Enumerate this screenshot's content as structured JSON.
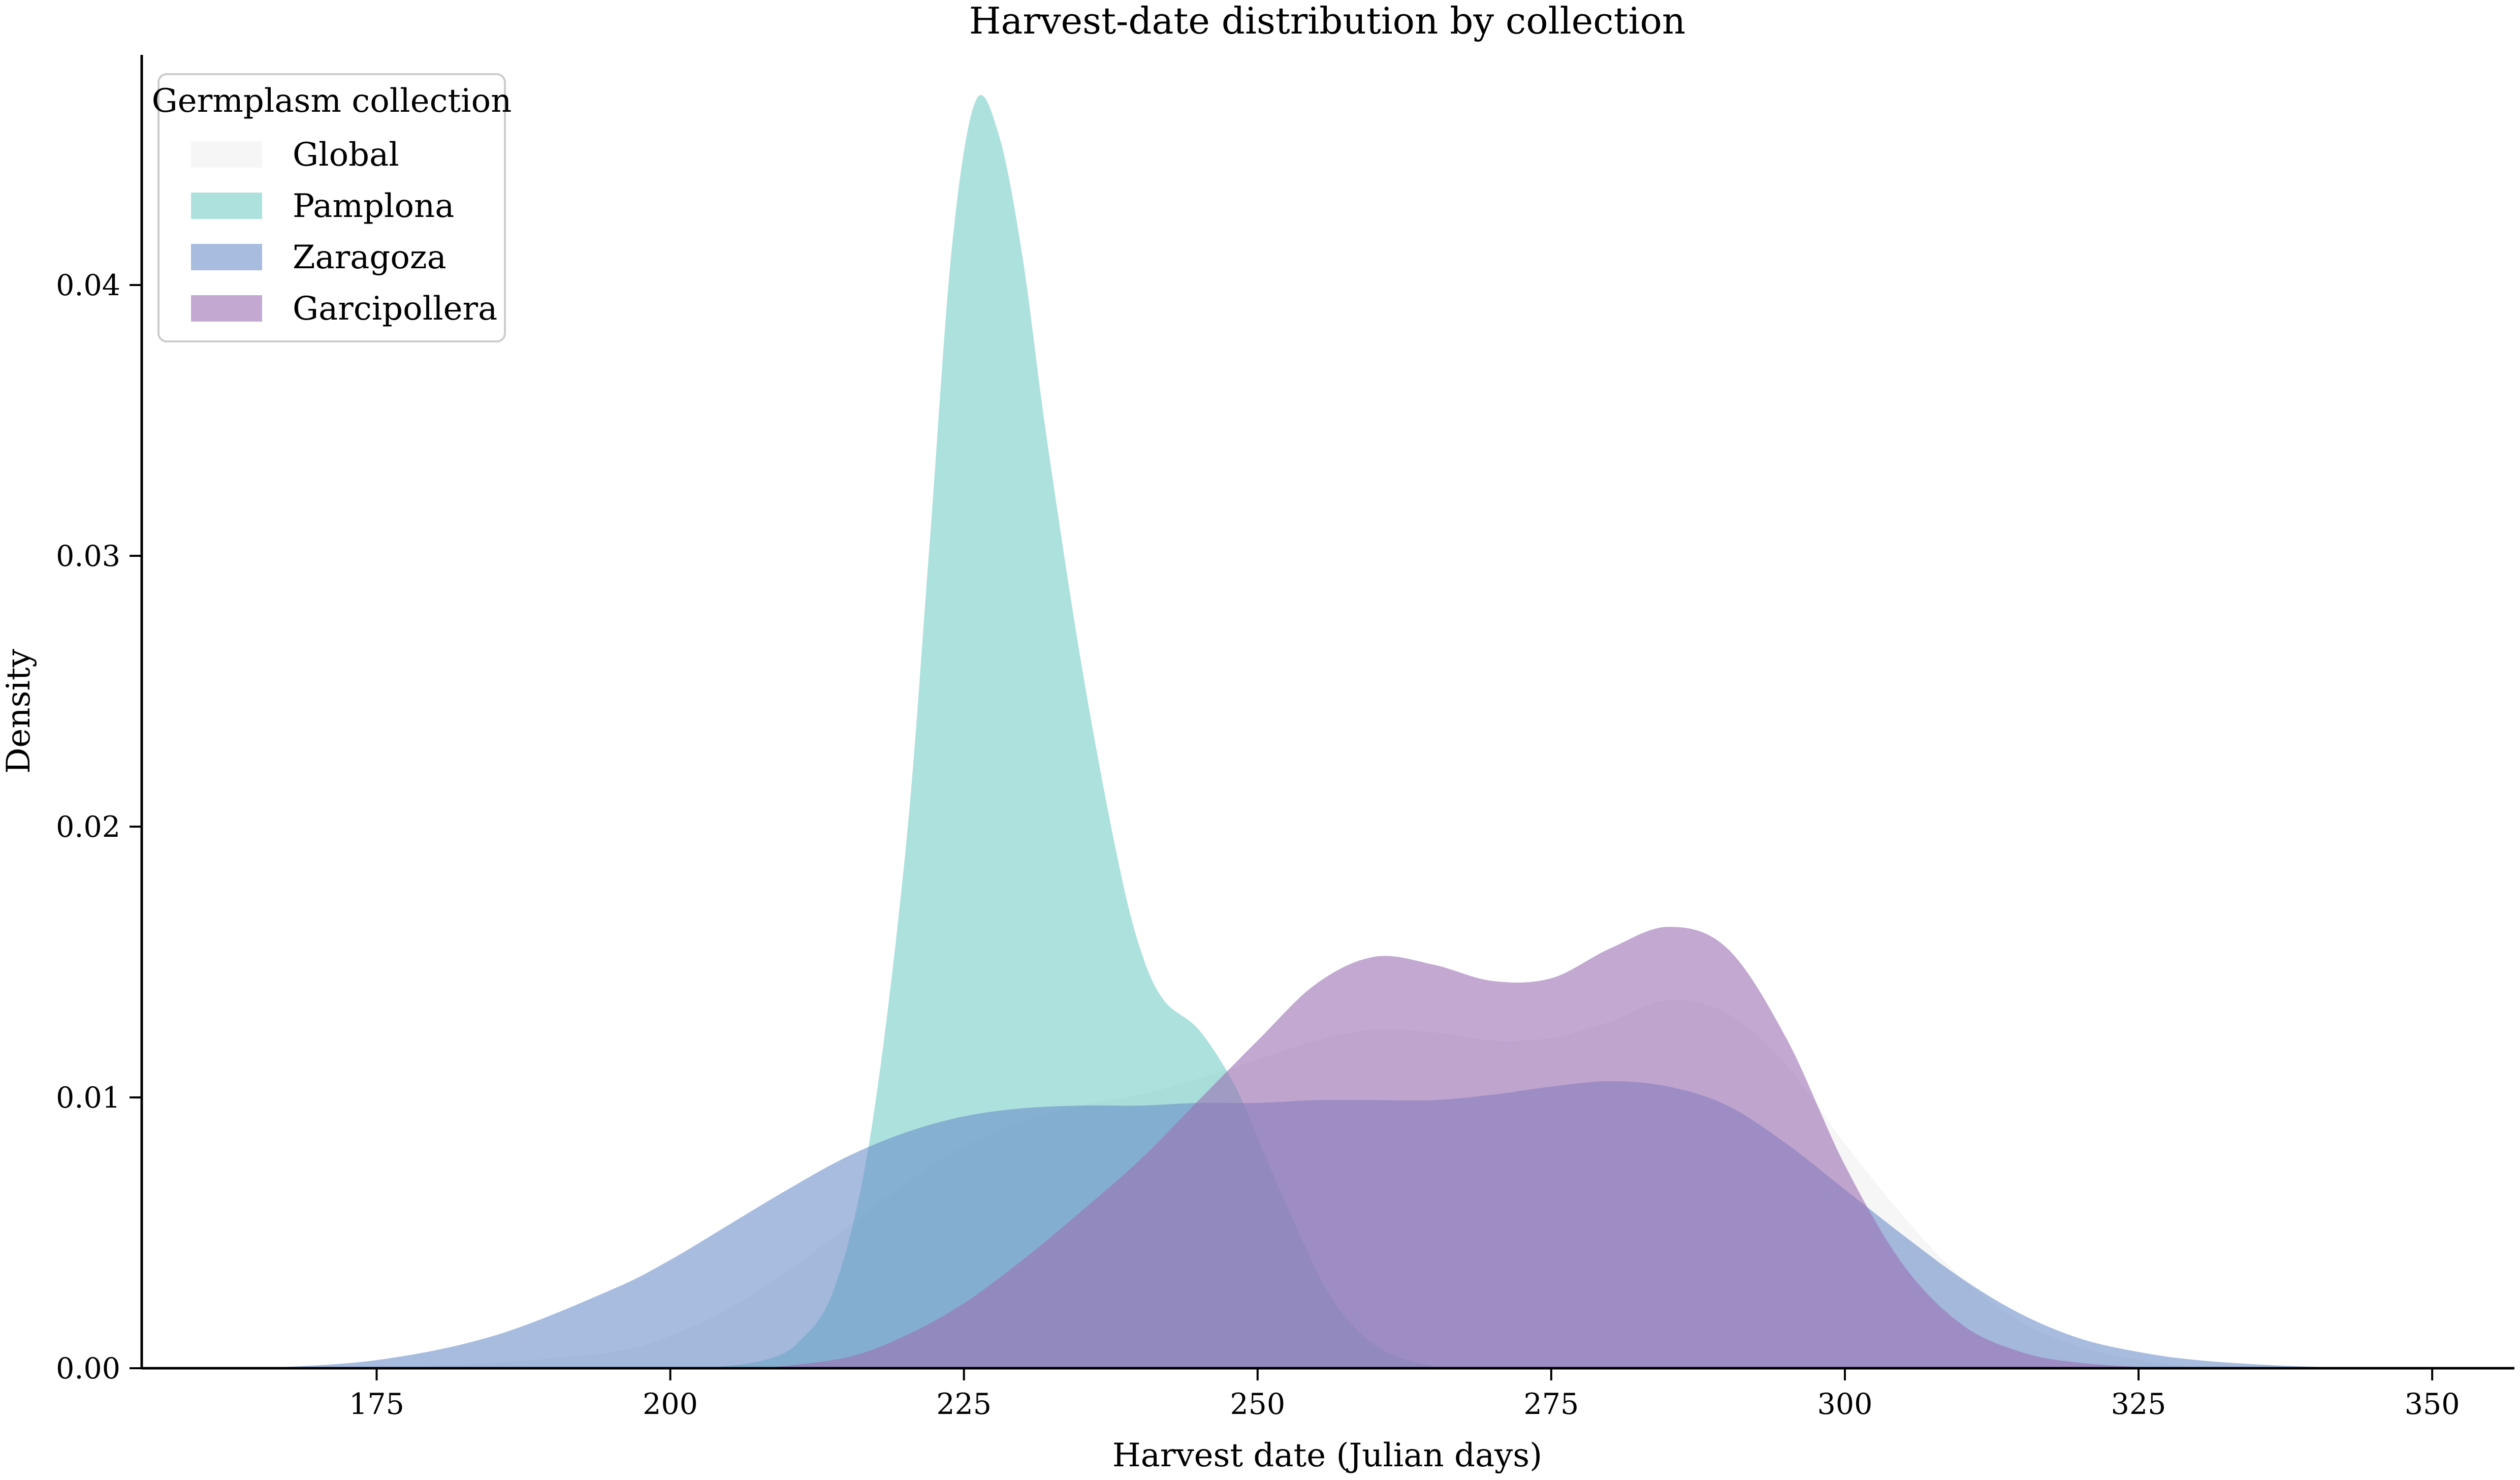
{
  "chart_data": {
    "type": "area",
    "title": "Harvest-date distribution by collection",
    "xlabel": "Harvest date (Julian days)",
    "ylabel": "Density",
    "xlim": [
      155,
      357
    ],
    "ylim": [
      0,
      0.0485
    ],
    "xticks": [
      175,
      200,
      225,
      250,
      275,
      300,
      325,
      350
    ],
    "xtick_labels": [
      "175",
      "200",
      "225",
      "250",
      "275",
      "300",
      "325",
      "350"
    ],
    "yticks": [
      0,
      0.01,
      0.02,
      0.03,
      0.04
    ],
    "ytick_labels": [
      "0.00",
      "0.01",
      "0.02",
      "0.03",
      "0.04"
    ],
    "grid": false,
    "legend": {
      "title": "Germplasm collection",
      "position": "top-left"
    },
    "series": [
      {
        "name": "Global",
        "color": "#eeeeee",
        "points": [
          [
            175,
            0.0
          ],
          [
            185,
            0.0002
          ],
          [
            195,
            0.0006
          ],
          [
            200,
            0.0012
          ],
          [
            205,
            0.0022
          ],
          [
            210,
            0.0036
          ],
          [
            215,
            0.0052
          ],
          [
            220,
            0.0068
          ],
          [
            225,
            0.0082
          ],
          [
            230,
            0.0091
          ],
          [
            235,
            0.0097
          ],
          [
            240,
            0.0101
          ],
          [
            245,
            0.0107
          ],
          [
            250,
            0.0114
          ],
          [
            255,
            0.0121
          ],
          [
            260,
            0.0125
          ],
          [
            265,
            0.0124
          ],
          [
            270,
            0.0121
          ],
          [
            275,
            0.0122
          ],
          [
            280,
            0.0128
          ],
          [
            285,
            0.0136
          ],
          [
            290,
            0.0131
          ],
          [
            295,
            0.0112
          ],
          [
            300,
            0.0083
          ],
          [
            305,
            0.0056
          ],
          [
            310,
            0.0033
          ],
          [
            315,
            0.0017
          ],
          [
            320,
            0.0008
          ],
          [
            325,
            0.0003
          ],
          [
            330,
            0.0
          ]
        ]
      },
      {
        "name": "Pamplona",
        "color": "#76cdc8",
        "points": [
          [
            203,
            0.0
          ],
          [
            208,
            0.0003
          ],
          [
            211,
            0.001
          ],
          [
            214,
            0.003
          ],
          [
            217,
            0.0085
          ],
          [
            220,
            0.019
          ],
          [
            222,
            0.03
          ],
          [
            224,
            0.0415
          ],
          [
            226,
            0.0468
          ],
          [
            228,
            0.0455
          ],
          [
            230,
            0.041
          ],
          [
            232,
            0.0345
          ],
          [
            235,
            0.026
          ],
          [
            238,
            0.019
          ],
          [
            240,
            0.0155
          ],
          [
            242,
            0.0136
          ],
          [
            245,
            0.0125
          ],
          [
            248,
            0.0105
          ],
          [
            250,
            0.0085
          ],
          [
            253,
            0.0055
          ],
          [
            256,
            0.0028
          ],
          [
            259,
            0.0012
          ],
          [
            262,
            0.0004
          ],
          [
            266,
            0.0
          ]
        ]
      },
      {
        "name": "Zaragoza",
        "color": "#6d90c9",
        "points": [
          [
            165,
            0.0
          ],
          [
            175,
            0.0003
          ],
          [
            185,
            0.0012
          ],
          [
            195,
            0.0029
          ],
          [
            200,
            0.004
          ],
          [
            205,
            0.0053
          ],
          [
            210,
            0.0066
          ],
          [
            215,
            0.0078
          ],
          [
            220,
            0.0087
          ],
          [
            225,
            0.0093
          ],
          [
            230,
            0.0096
          ],
          [
            235,
            0.0097
          ],
          [
            240,
            0.0097
          ],
          [
            245,
            0.0098
          ],
          [
            250,
            0.0098
          ],
          [
            255,
            0.0099
          ],
          [
            260,
            0.0099
          ],
          [
            265,
            0.0099
          ],
          [
            270,
            0.0101
          ],
          [
            275,
            0.0104
          ],
          [
            280,
            0.0106
          ],
          [
            285,
            0.0104
          ],
          [
            290,
            0.0097
          ],
          [
            295,
            0.0083
          ],
          [
            300,
            0.0066
          ],
          [
            305,
            0.0049
          ],
          [
            310,
            0.0033
          ],
          [
            315,
            0.002
          ],
          [
            320,
            0.0011
          ],
          [
            325,
            0.0006
          ],
          [
            330,
            0.0003
          ],
          [
            337,
            0.0001
          ],
          [
            345,
            0.0
          ]
        ]
      },
      {
        "name": "Garcipollera",
        "color": "#9b6fb4",
        "points": [
          [
            208,
            0.0
          ],
          [
            215,
            0.0004
          ],
          [
            220,
            0.0012
          ],
          [
            225,
            0.0024
          ],
          [
            230,
            0.004
          ],
          [
            235,
            0.0058
          ],
          [
            240,
            0.0077
          ],
          [
            245,
            0.0099
          ],
          [
            250,
            0.0121
          ],
          [
            255,
            0.0142
          ],
          [
            260,
            0.0152
          ],
          [
            265,
            0.0149
          ],
          [
            270,
            0.0143
          ],
          [
            275,
            0.0144
          ],
          [
            280,
            0.0155
          ],
          [
            285,
            0.0163
          ],
          [
            290,
            0.0155
          ],
          [
            295,
            0.0122
          ],
          [
            300,
            0.0075
          ],
          [
            305,
            0.0038
          ],
          [
            310,
            0.0016
          ],
          [
            315,
            0.0006
          ],
          [
            320,
            0.0002
          ],
          [
            327,
            0.0
          ]
        ]
      }
    ]
  }
}
